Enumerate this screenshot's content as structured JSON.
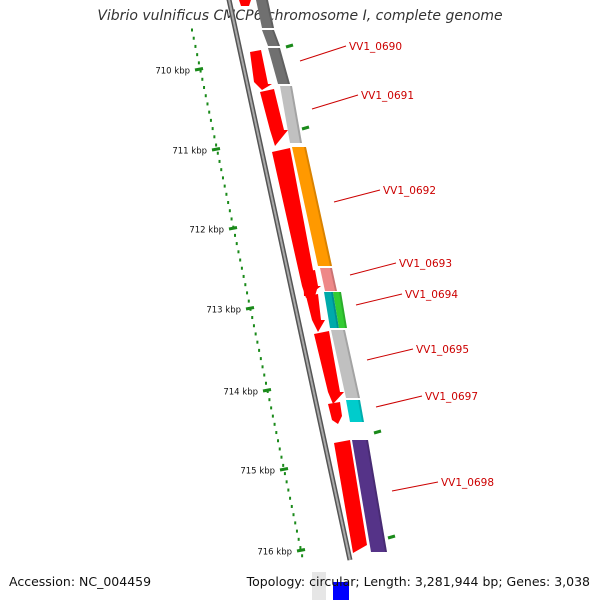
{
  "title": "Vibrio vulnificus CMCP6 chromosome I, complete genome",
  "footer": {
    "accession": "Accession: NC_004459",
    "topology": "Topology: circular; Length: 3,281,944 bp; Genes: 3,038"
  },
  "ruler": {
    "unit": "kbp",
    "ticks": [
      {
        "label": "710 kbp"
      },
      {
        "label": "711 kbp"
      },
      {
        "label": "712 kbp"
      },
      {
        "label": "713 kbp"
      },
      {
        "label": "714 kbp"
      },
      {
        "label": "715 kbp"
      },
      {
        "label": "716 kbp"
      }
    ],
    "tick_color": "#1a8a1a"
  },
  "backbone_color": "#777777",
  "genes": [
    {
      "label": "VV1_0690",
      "strand_color": "#ff0000",
      "cog_color": "#707070"
    },
    {
      "label": "VV1_0691",
      "strand_color": "#ff0000",
      "cog_color": "#c0c0c0"
    },
    {
      "label": "VV1_0692",
      "strand_color": "#ff0000",
      "cog_color": "#ff9900"
    },
    {
      "label": "VV1_0693",
      "strand_color": "#ff0000",
      "cog_color": "#ee8888"
    },
    {
      "label": "VV1_0694",
      "strand_color": "#ff0000",
      "cog_color": "#33cc33"
    },
    {
      "label": "VV1_0695",
      "strand_color": "#ff0000",
      "cog_color": "#c0c0c0"
    },
    {
      "label": "VV1_0697",
      "strand_color": "#ff0000",
      "cog_color": "#00cccc"
    },
    {
      "label": "VV1_0698",
      "strand_color": "#ff0000",
      "cog_color": "#553388"
    }
  ],
  "extra_cog_colors": [
    "#00aaaa",
    "#c0c0c0"
  ],
  "label_color": "#cc0000"
}
